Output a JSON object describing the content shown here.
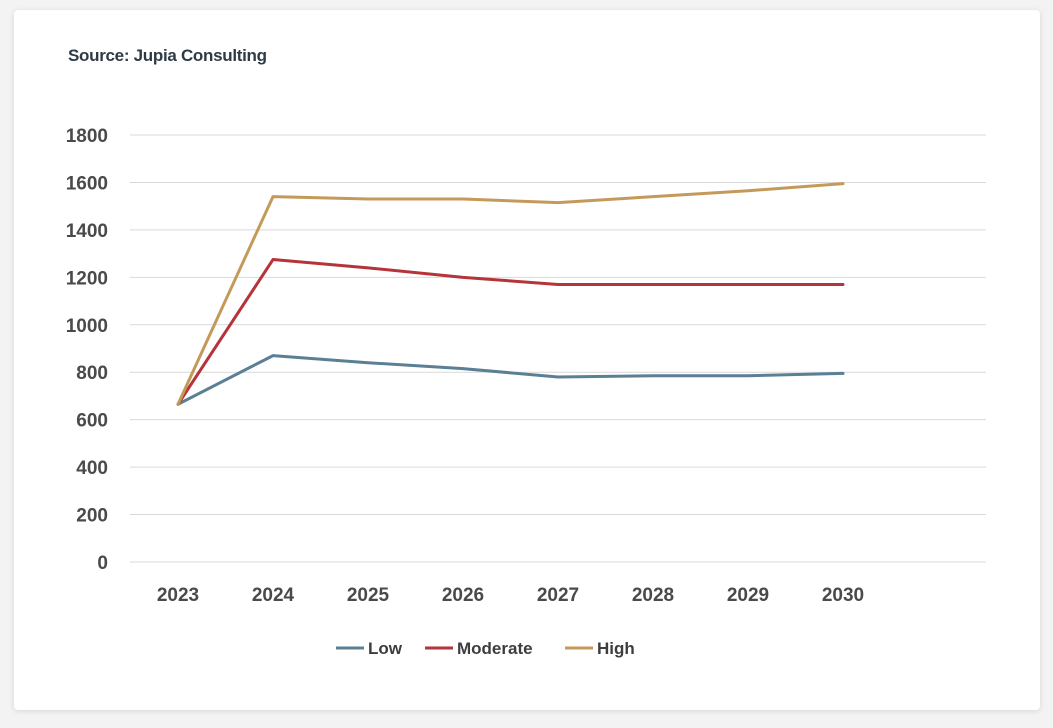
{
  "source_note": "Source: Jupia Consulting",
  "chart_data": {
    "type": "line",
    "title": "",
    "xlabel": "",
    "ylabel": "",
    "categories": [
      "2023",
      "2024",
      "2025",
      "2026",
      "2027",
      "2028",
      "2029",
      "2030"
    ],
    "ylim": [
      0,
      1800
    ],
    "yticks": [
      0,
      200,
      400,
      600,
      800,
      1000,
      1200,
      1400,
      1600,
      1800
    ],
    "grid": true,
    "legend_position": "bottom",
    "series": [
      {
        "name": "Low",
        "color": "#5b7f95",
        "values": [
          665,
          870,
          840,
          815,
          780,
          785,
          785,
          795
        ]
      },
      {
        "name": "Moderate",
        "color": "#b5343a",
        "values": [
          665,
          1275,
          1240,
          1200,
          1170,
          1170,
          1170,
          1170
        ]
      },
      {
        "name": "High",
        "color": "#c49a5a",
        "values": [
          665,
          1540,
          1530,
          1530,
          1515,
          1540,
          1565,
          1595
        ]
      }
    ]
  }
}
